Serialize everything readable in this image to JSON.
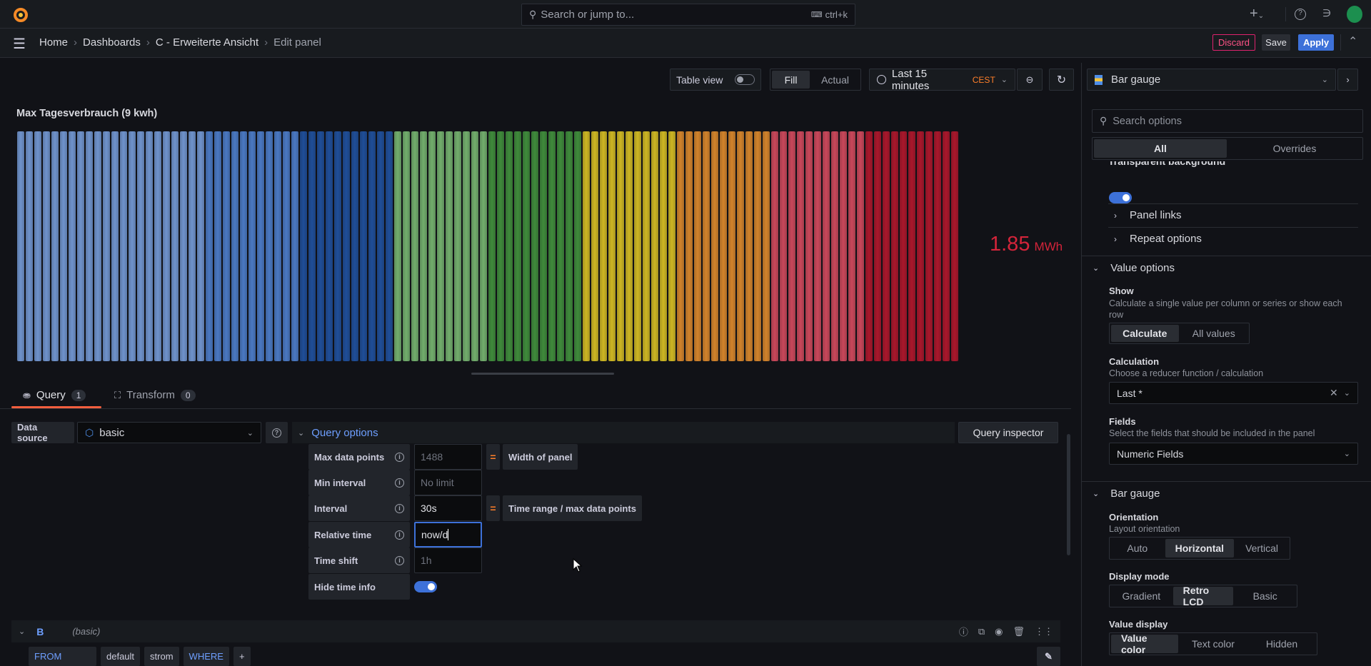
{
  "topbar": {
    "search_placeholder": "Search or jump to...",
    "shortcut": "ctrl+k",
    "icons": [
      "grafana-logo",
      "plus-icon",
      "help-icon",
      "rss-icon",
      "avatar"
    ]
  },
  "breadcrumb": [
    "Home",
    "Dashboards",
    "C - Erweiterte Ansicht",
    "Edit panel"
  ],
  "actions": {
    "discard": "Discard",
    "save": "Save",
    "apply": "Apply"
  },
  "toolbar": {
    "table_view": "Table view",
    "table_view_on": false,
    "fill": "Fill",
    "actual": "Actual",
    "time_range": "Last 15 minutes",
    "timezone": "CEST"
  },
  "panel": {
    "title": "Max Tagesverbrauch (9 kwh)",
    "value": "1.85",
    "unit": "MWh",
    "value_color": "#d4243a",
    "segments": [
      {
        "color": "#6f93cc",
        "bars": 22
      },
      {
        "color": "#4a78c2",
        "bars": 11
      },
      {
        "color": "#1f4e98",
        "bars": 11
      },
      {
        "color": "#72ad6c",
        "bars": 11
      },
      {
        "color": "#3f8a3b",
        "bars": 11
      },
      {
        "color": "#cdb623",
        "bars": 11
      },
      {
        "color": "#d2832b",
        "bars": 11
      },
      {
        "color": "#c9475a",
        "bars": 11
      },
      {
        "color": "#a9172b",
        "bars": 11
      }
    ]
  },
  "tabs": [
    {
      "label": "Query",
      "count": "1"
    },
    {
      "label": "Transform",
      "count": "0"
    }
  ],
  "query": {
    "datasource_label": "Data source",
    "datasource": "basic",
    "options_title": "Query options",
    "inspector": "Query inspector",
    "rows": [
      {
        "label": "Max data points",
        "value": "1488",
        "placeholder": true,
        "eq": "=",
        "note": "Width of panel"
      },
      {
        "label": "Min interval",
        "value": "No limit",
        "placeholder": true
      },
      {
        "label": "Interval",
        "value": "30s",
        "placeholder": false,
        "eq": "=",
        "note": "Time range / max data points"
      },
      {
        "label": "Relative time",
        "value": "now/d",
        "placeholder": false
      },
      {
        "label": "Time shift",
        "value": "1h",
        "placeholder": true
      }
    ],
    "hide_time_info": "Hide time info",
    "hide_time_info_on": true,
    "b": {
      "ref": "B",
      "ds": "(basic)"
    },
    "builder": {
      "from": "FROM",
      "default": "default",
      "measurement": "strom",
      "where": "WHERE",
      "plus": "+"
    }
  },
  "options": {
    "viz": "Bar gauge",
    "search_placeholder": "Search options",
    "tab_all": "All",
    "tab_overrides": "Overrides",
    "transparent": "Transparent background",
    "panel_links": "Panel links",
    "repeat": "Repeat options",
    "value_options": "Value options",
    "show": "Show",
    "show_desc": "Calculate a single value per column or series or show each row",
    "show_opts": [
      "Calculate",
      "All values"
    ],
    "calculation": "Calculation",
    "calculation_desc": "Choose a reducer function / calculation",
    "calculation_value": "Last *",
    "fields": "Fields",
    "fields_desc": "Select the fields that should be included in the panel",
    "fields_value": "Numeric Fields",
    "bar_gauge": "Bar gauge",
    "orientation": "Orientation",
    "orientation_desc": "Layout orientation",
    "orientation_opts": [
      "Auto",
      "Horizontal",
      "Vertical"
    ],
    "display_mode": "Display mode",
    "display_opts": [
      "Gradient",
      "Retro LCD",
      "Basic"
    ],
    "value_display": "Value display",
    "value_display_opts": [
      "Value color",
      "Text color",
      "Hidden"
    ]
  }
}
